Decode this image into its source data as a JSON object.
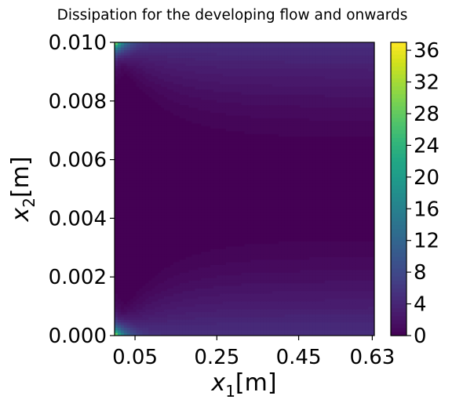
{
  "chart_data": {
    "type": "heatmap",
    "title": "Dissipation for the developing flow and onwards",
    "xlabel": {
      "main": "x",
      "sub": "1",
      "unit": "[m]"
    },
    "ylabel": {
      "main": "x",
      "sub": "2",
      "unit": "[m]"
    },
    "x_ticks": [
      {
        "value": 0.05,
        "label": "0.05"
      },
      {
        "value": 0.25,
        "label": "0.25"
      },
      {
        "value": 0.45,
        "label": "0.45"
      },
      {
        "value": 0.63,
        "label": "0.63"
      }
    ],
    "y_ticks": [
      {
        "value": 0.0,
        "label": "0.000"
      },
      {
        "value": 0.002,
        "label": "0.002"
      },
      {
        "value": 0.004,
        "label": "0.004"
      },
      {
        "value": 0.006,
        "label": "0.006"
      },
      {
        "value": 0.008,
        "label": "0.008"
      },
      {
        "value": 0.01,
        "label": "0.010"
      }
    ],
    "xlim": [
      0.0,
      0.635
    ],
    "ylim": [
      0.0,
      0.01
    ],
    "colorbar": {
      "range": [
        0,
        37
      ],
      "colormap": "viridis",
      "ticks": [
        {
          "value": 0,
          "label": "0"
        },
        {
          "value": 4,
          "label": "4"
        },
        {
          "value": 8,
          "label": "8"
        },
        {
          "value": 12,
          "label": "12"
        },
        {
          "value": 16,
          "label": "16"
        },
        {
          "value": 20,
          "label": "20"
        },
        {
          "value": 24,
          "label": "24"
        },
        {
          "value": 28,
          "label": "28"
        },
        {
          "value": 32,
          "label": "32"
        },
        {
          "value": 36,
          "label": "36"
        }
      ]
    },
    "field": {
      "description_of_values": "dissipation highest at walls near inlet, decaying downstream; near-zero core",
      "wall_developed_value": 5.5,
      "inlet_peak_value": 37,
      "core_value": 0
    }
  }
}
